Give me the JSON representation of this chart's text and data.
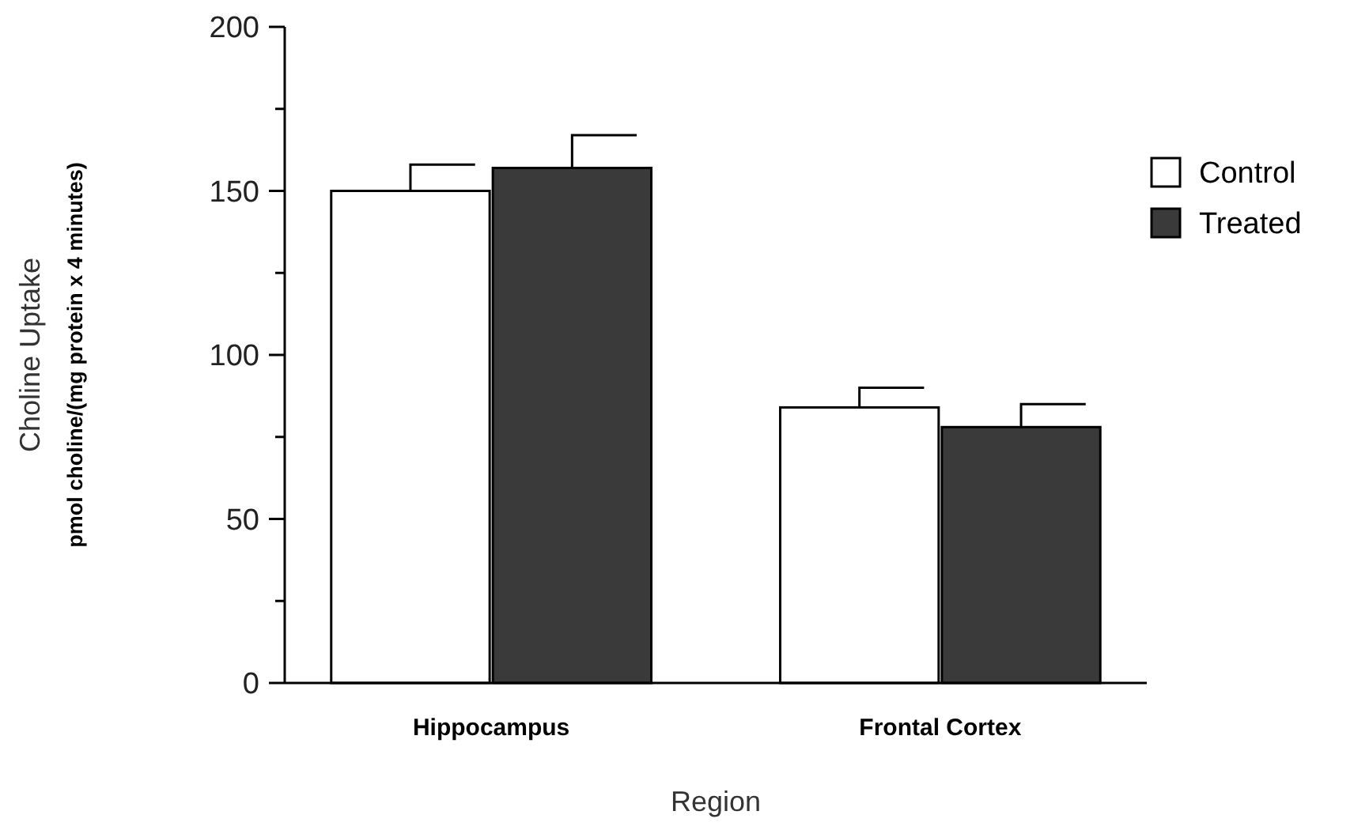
{
  "chart_data": {
    "type": "bar",
    "xlabel": "Region",
    "ylabel": "Choline Uptake\npmol choline/(mg protein x 4 minutes)",
    "categories": [
      "Hippocampus",
      "Frontal Cortex"
    ],
    "series": [
      {
        "name": "Control",
        "color": "#ffffff",
        "values": [
          150,
          84
        ],
        "errors": [
          [
            150,
            158
          ],
          [
            84,
            90
          ]
        ]
      },
      {
        "name": "Treated",
        "color": "#3a3a3a",
        "values": [
          157,
          78
        ],
        "errors": [
          [
            157,
            167
          ],
          [
            78,
            85
          ]
        ]
      }
    ],
    "ylim": [
      0,
      200
    ],
    "yticks": [
      0,
      {
        "value": 25,
        "label": null
      },
      50,
      {
        "value": 75,
        "label": null
      },
      100,
      {
        "value": 125,
        "label": null
      },
      150,
      {
        "value": 175,
        "label": null
      },
      200
    ],
    "grid": false,
    "legend": "top right"
  }
}
